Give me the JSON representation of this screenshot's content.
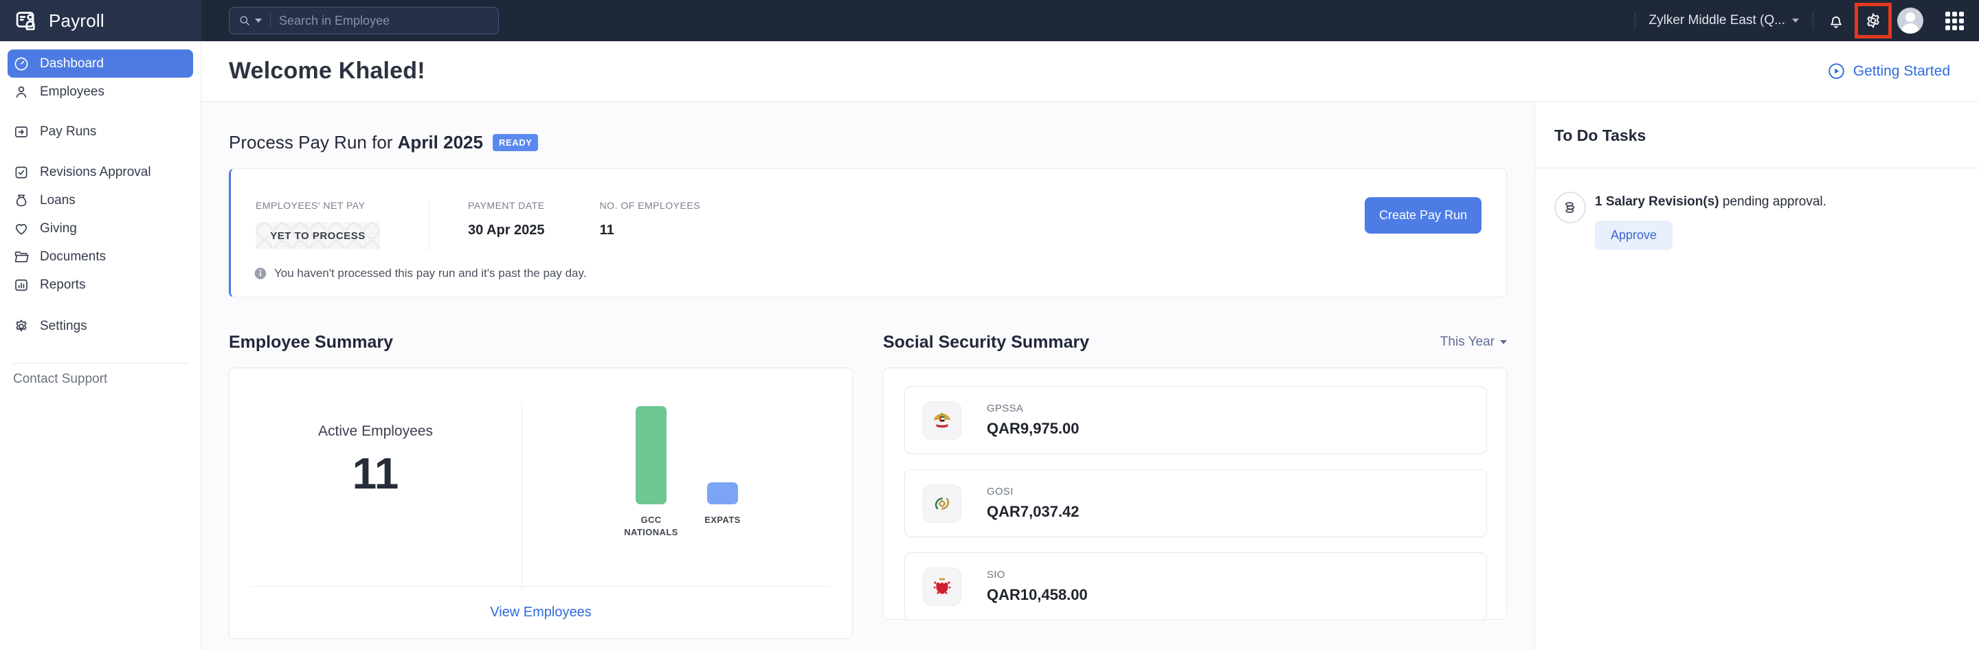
{
  "topbar": {
    "app_name": "Payroll",
    "search_placeholder": "Search in Employee",
    "org_name": "Zylker Middle East (Q..."
  },
  "sidebar": {
    "items": [
      {
        "label": "Dashboard",
        "active": true
      },
      {
        "label": "Employees"
      },
      {
        "label": "Pay Runs"
      },
      {
        "label": "Revisions Approval"
      },
      {
        "label": "Loans"
      },
      {
        "label": "Giving"
      },
      {
        "label": "Documents"
      },
      {
        "label": "Reports"
      },
      {
        "label": "Settings"
      }
    ],
    "contact_support": "Contact Support"
  },
  "header": {
    "welcome": "Welcome Khaled!",
    "getting_started": "Getting Started"
  },
  "payrun": {
    "title_prefix": "Process Pay Run for ",
    "title_period": "April 2025",
    "status_badge": "READY",
    "net_pay_label": "EMPLOYEES' NET PAY",
    "net_pay_value": "YET TO PROCESS",
    "payment_date_label": "PAYMENT DATE",
    "payment_date_value": "30 Apr 2025",
    "employees_label": "NO. OF EMPLOYEES",
    "employees_value": "11",
    "cta": "Create Pay Run",
    "note": "You haven't processed this pay run and it's past the pay day."
  },
  "employee_summary": {
    "title": "Employee Summary",
    "active_label": "Active Employees",
    "active_count": "11",
    "link": "View Employees"
  },
  "chart_data": {
    "type": "bar",
    "title": "Employee Summary",
    "categories": [
      "GCC NATIONALS",
      "EXPATS"
    ],
    "values": [
      9,
      2
    ],
    "colors": [
      "#6fc794",
      "#7ba5f4"
    ],
    "total_active_employees": 11,
    "xlabel": "",
    "ylabel": "",
    "grid": false,
    "legend": "none"
  },
  "social_security": {
    "title": "Social Security Summary",
    "filter": "This Year",
    "items": [
      {
        "name": "GPSSA",
        "amount": "QAR9,975.00"
      },
      {
        "name": "GOSI",
        "amount": "QAR7,037.42"
      },
      {
        "name": "SIO",
        "amount": "QAR10,458.00"
      }
    ]
  },
  "todo": {
    "title": "To Do Tasks",
    "task_bold": "1 Salary Revision(s)",
    "task_rest": " pending approval.",
    "approve": "Approve"
  },
  "colors": {
    "topbar_bg": "#1f2839",
    "topbar_left_bg": "#27314a",
    "accent_blue": "#4d7ce4",
    "ready_badge": "#5a8af0",
    "link_blue": "#2e6ade",
    "bar_green": "#6fc794",
    "bar_blue": "#7ba5f4",
    "annotation_red": "#e2381f"
  }
}
